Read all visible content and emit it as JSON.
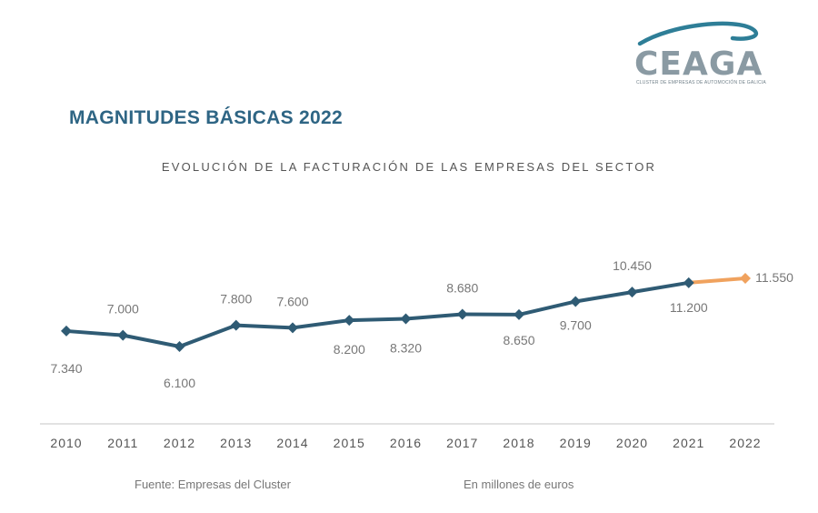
{
  "header": {
    "logo_text": "CEAGA",
    "logo_subtitle": "CLUSTER DE EMPRESAS DE AUTOMOCIÓN DE GALICIA",
    "title": "MAGNITUDES BÁSICAS 2022"
  },
  "colors": {
    "title": "#2e6584",
    "series": "#2f5b74",
    "highlight": "#f0a25e",
    "axis": "#d9d9d9",
    "logo_swoosh": "#2e7e97",
    "logo_text": "#8a9aa3"
  },
  "chart_data": {
    "type": "line",
    "title": "EVOLUCIÓN DE LA FACTURACIÓN DE LAS EMPRESAS DEL SECTOR",
    "x": [
      "2010",
      "2011",
      "2012",
      "2013",
      "2014",
      "2015",
      "2016",
      "2017",
      "2018",
      "2019",
      "2020",
      "2021",
      "2022"
    ],
    "values": [
      7340,
      7000,
      6100,
      7800,
      7600,
      8200,
      8320,
      8680,
      8650,
      9700,
      10450,
      11200,
      11550
    ],
    "labels": [
      "7.340",
      "7.000",
      "6.100",
      "7.800",
      "7.600",
      "8.200",
      "8.320",
      "8.680",
      "8.650",
      "9.700",
      "10.450",
      "11.200",
      "11.550"
    ],
    "highlight_last_segment": true,
    "grid": false,
    "legend": "none"
  },
  "footer": {
    "source": "Fuente: Empresas del Cluster",
    "units": "En millones de euros"
  }
}
